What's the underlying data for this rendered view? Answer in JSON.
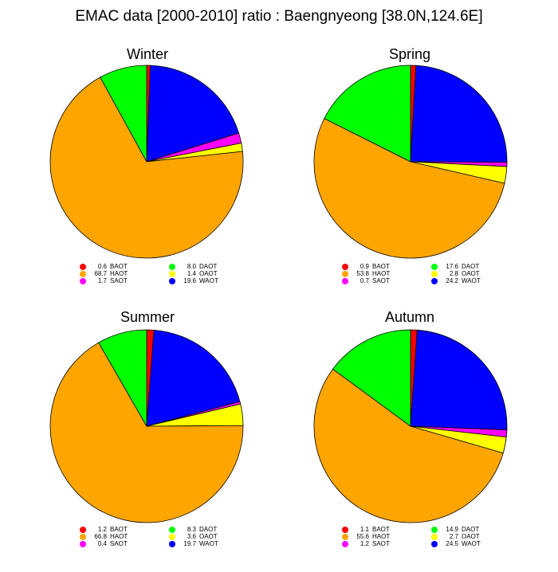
{
  "title": "EMAC data [2000-2010] ratio : Baengnyeong [38.0N,124.6E]",
  "colors": {
    "BAOT": "#ff0000",
    "HAOT": "#ffa500",
    "SAOT": "#ff00ff",
    "DAOT": "#00ff00",
    "OAOT": "#ffff00",
    "WAOT": "#0000ff"
  },
  "legend_order": [
    "BAOT",
    "HAOT",
    "SAOT",
    "DAOT",
    "OAOT",
    "WAOT"
  ],
  "slice_order": [
    "BAOT",
    "WAOT",
    "SAOT",
    "OAOT",
    "HAOT",
    "DAOT"
  ],
  "chart_data": [
    {
      "type": "pie",
      "title": "Winter",
      "labels": [
        "BAOT",
        "HAOT",
        "SAOT",
        "DAOT",
        "OAOT",
        "WAOT"
      ],
      "values": [
        0.6,
        68.7,
        1.7,
        8.0,
        1.4,
        19.6
      ],
      "value_labels": [
        "0.6",
        "68.7",
        "1.7",
        "8.0",
        "1.4",
        "19.6"
      ]
    },
    {
      "type": "pie",
      "title": "Spring",
      "labels": [
        "BAOT",
        "HAOT",
        "SAOT",
        "DAOT",
        "OAOT",
        "WAOT"
      ],
      "values": [
        0.9,
        53.8,
        0.7,
        17.6,
        2.8,
        24.2
      ],
      "value_labels": [
        "0.9",
        "53.8",
        "0.7",
        "17.6",
        "2.8",
        "24.2"
      ]
    },
    {
      "type": "pie",
      "title": "Summer",
      "labels": [
        "BAOT",
        "HAOT",
        "SAOT",
        "DAOT",
        "OAOT",
        "WAOT"
      ],
      "values": [
        1.2,
        66.8,
        0.4,
        8.3,
        3.6,
        19.7
      ],
      "value_labels": [
        "1.2",
        "66.8",
        "0.4",
        "8.3",
        "3.6",
        "19.7"
      ]
    },
    {
      "type": "pie",
      "title": "Autumn",
      "labels": [
        "BAOT",
        "HAOT",
        "SAOT",
        "DAOT",
        "OAOT",
        "WAOT"
      ],
      "values": [
        1.1,
        55.6,
        1.2,
        14.9,
        2.7,
        24.5
      ],
      "value_labels": [
        "1.1",
        "55.6",
        "1.2",
        "14.9",
        "2.7",
        "24.5"
      ]
    }
  ]
}
